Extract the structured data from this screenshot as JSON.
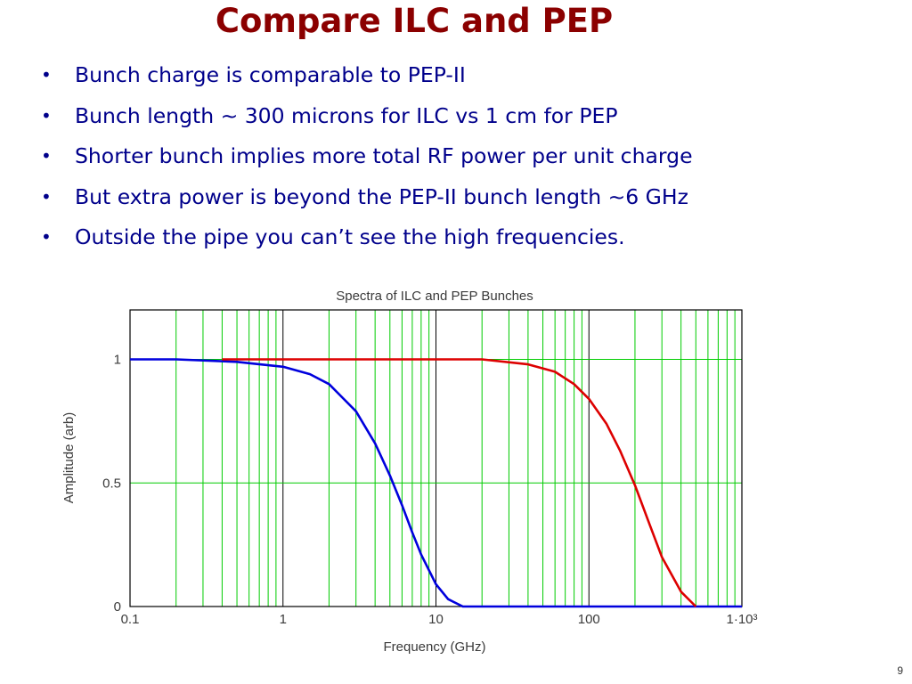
{
  "slide": {
    "title": "Compare ILC and PEP",
    "bullets": [
      "Bunch charge is comparable to PEP-II",
      "Bunch length ~ 300 microns for ILC vs 1 cm for PEP",
      "Shorter bunch implies more total RF power per unit charge",
      "But extra power is beyond the PEP-II bunch length ~6 GHz",
      "Outside the pipe you can’t see the high frequencies."
    ],
    "page_number": "9"
  },
  "chart_data": {
    "type": "line",
    "title": "Spectra of ILC and PEP Bunches",
    "xlabel": "Frequency (GHz)",
    "ylabel": "Amplitude (arb)",
    "x_scale": "log",
    "xlim": [
      0.1,
      1000
    ],
    "ylim": [
      0,
      1.2
    ],
    "x_tick_labels": [
      "0.1",
      "1",
      "10",
      "100",
      "1·10³"
    ],
    "y_tick_labels": [
      "0",
      "0.5",
      "1"
    ],
    "grid": true,
    "grid_color": "#00cc00",
    "major_grid_color": "#000000",
    "series": [
      {
        "color": "#0000dd",
        "x": [
          0.1,
          0.2,
          0.5,
          1,
          1.5,
          2,
          3,
          4,
          5,
          6,
          7,
          8,
          10,
          12,
          15,
          20,
          50,
          100,
          1000
        ],
        "y": [
          1.0,
          1.0,
          0.99,
          0.97,
          0.94,
          0.9,
          0.79,
          0.66,
          0.53,
          0.41,
          0.3,
          0.21,
          0.09,
          0.03,
          0.0,
          0.0,
          0.0,
          0.0,
          0.0
        ]
      },
      {
        "color": "#dd0000",
        "x": [
          0.4,
          1,
          10,
          20,
          40,
          60,
          80,
          100,
          130,
          160,
          200,
          250,
          300,
          400,
          500
        ],
        "y": [
          1.0,
          1.0,
          1.0,
          1.0,
          0.98,
          0.95,
          0.9,
          0.84,
          0.74,
          0.63,
          0.49,
          0.33,
          0.2,
          0.06,
          0.0
        ]
      }
    ]
  }
}
